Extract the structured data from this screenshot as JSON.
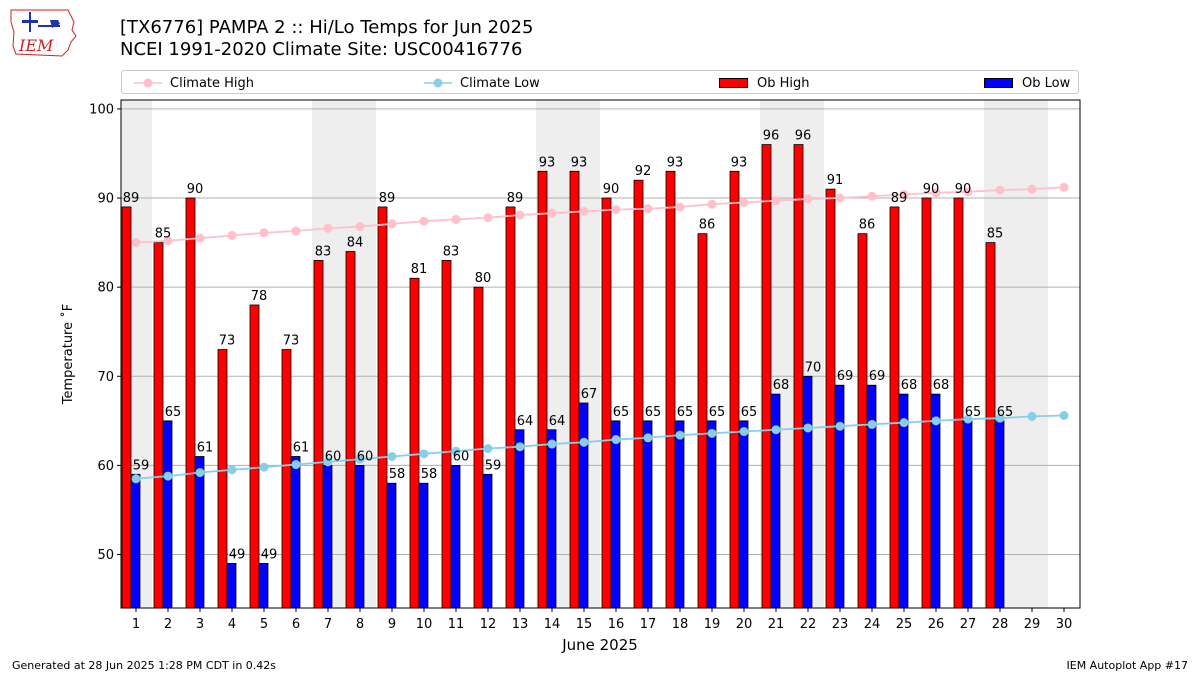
{
  "header": {
    "logo_text": "IEM",
    "title_line1": "[TX6776] PAMPA 2 :: Hi/Lo Temps for Jun 2025",
    "title_line2": "NCEI 1991-2020 Climate Site: USC00416776"
  },
  "legend": {
    "climate_high": "Climate High",
    "climate_low": "Climate Low",
    "ob_high": "Ob High",
    "ob_low": "Ob Low"
  },
  "footer": {
    "generated": "Generated at 28 Jun 2025 1:28 PM CDT in 0.42s",
    "app": "IEM Autoplot App #17"
  },
  "colors": {
    "ob_high": "#ff0000",
    "ob_low": "#0000ff",
    "climate_high": "#ffc0cb",
    "climate_low": "#87ceeb",
    "weekend_band": "#eeeeee"
  },
  "chart_data": {
    "type": "bar",
    "xlabel": "June 2025",
    "ylabel": "Temperature ˚F",
    "ylim": [
      44,
      101
    ],
    "yticks": [
      50,
      60,
      70,
      80,
      90,
      100
    ],
    "grid": "horizontal",
    "legend_position": "top",
    "categories": [
      "1",
      "2",
      "3",
      "4",
      "5",
      "6",
      "7",
      "8",
      "9",
      "10",
      "11",
      "12",
      "13",
      "14",
      "15",
      "16",
      "17",
      "18",
      "19",
      "20",
      "21",
      "22",
      "23",
      "24",
      "25",
      "26",
      "27",
      "28",
      "29",
      "30"
    ],
    "weekend_days": [
      1,
      7,
      8,
      14,
      15,
      21,
      22,
      28,
      29
    ],
    "series": [
      {
        "name": "Ob High",
        "kind": "bar",
        "values": [
          89,
          85,
          90,
          73,
          78,
          73,
          83,
          84,
          89,
          81,
          83,
          80,
          89,
          93,
          93,
          90,
          92,
          93,
          86,
          93,
          96,
          96,
          91,
          86,
          89,
          90,
          90,
          85,
          null,
          null
        ]
      },
      {
        "name": "Ob Low",
        "kind": "bar",
        "values": [
          59,
          65,
          61,
          49,
          49,
          61,
          60,
          60,
          58,
          58,
          60,
          59,
          64,
          64,
          67,
          65,
          65,
          65,
          65,
          65,
          68,
          70,
          69,
          69,
          68,
          68,
          65,
          65,
          null,
          null
        ]
      },
      {
        "name": "Climate High",
        "kind": "line",
        "values": [
          85.0,
          85.2,
          85.5,
          85.8,
          86.1,
          86.3,
          86.6,
          86.8,
          87.1,
          87.4,
          87.6,
          87.8,
          88.1,
          88.3,
          88.5,
          88.7,
          88.8,
          89.0,
          89.3,
          89.5,
          89.7,
          89.9,
          90.0,
          90.2,
          90.4,
          90.6,
          90.7,
          90.9,
          91.0,
          91.2
        ]
      },
      {
        "name": "Climate Low",
        "kind": "line",
        "values": [
          58.5,
          58.8,
          59.2,
          59.5,
          59.8,
          60.1,
          60.4,
          60.7,
          61.0,
          61.3,
          61.6,
          61.9,
          62.1,
          62.4,
          62.6,
          62.9,
          63.1,
          63.4,
          63.6,
          63.8,
          64.0,
          64.2,
          64.4,
          64.6,
          64.8,
          65.0,
          65.2,
          65.3,
          65.5,
          65.6
        ]
      }
    ]
  }
}
